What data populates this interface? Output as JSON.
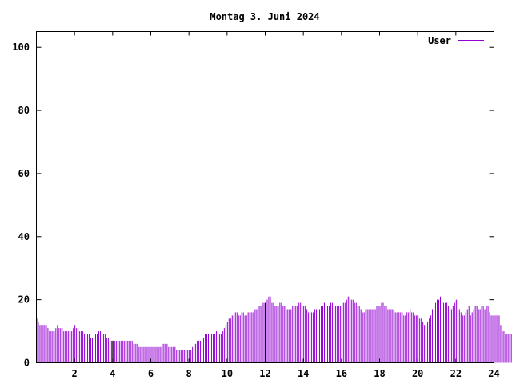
{
  "chart_data": {
    "type": "bar",
    "title": "Montag 3. Juni 2024",
    "xlabel": "",
    "ylabel": "",
    "xlim": [
      0,
      24
    ],
    "ylim": [
      0,
      105
    ],
    "x_ticks": [
      2,
      4,
      6,
      8,
      10,
      12,
      14,
      16,
      18,
      20,
      22,
      24
    ],
    "y_ticks": [
      0,
      20,
      40,
      60,
      80,
      100
    ],
    "grid": false,
    "legend_position": "top-right",
    "color": "#9400d3",
    "series": [
      {
        "name": "User",
        "step_minutes": 5,
        "values": [
          14,
          13,
          12,
          12,
          12,
          12,
          12,
          11,
          10,
          10,
          10,
          10,
          11,
          12,
          11,
          11,
          11,
          10,
          10,
          10,
          10,
          10,
          10,
          11,
          12,
          11,
          11,
          10,
          10,
          10,
          9,
          9,
          9,
          9,
          8,
          8,
          9,
          9,
          9,
          10,
          10,
          10,
          9,
          9,
          8,
          8,
          7,
          7,
          7,
          7,
          7,
          7,
          7,
          7,
          7,
          7,
          7,
          7,
          7,
          7,
          7,
          6,
          6,
          6,
          5,
          5,
          5,
          5,
          5,
          5,
          5,
          5,
          5,
          5,
          5,
          5,
          5,
          5,
          5,
          6,
          6,
          6,
          6,
          5,
          5,
          5,
          5,
          5,
          4,
          4,
          4,
          4,
          4,
          4,
          4,
          4,
          4,
          4,
          5,
          6,
          6,
          7,
          7,
          7,
          8,
          8,
          9,
          9,
          9,
          9,
          9,
          9,
          9,
          10,
          10,
          9,
          9,
          10,
          11,
          12,
          13,
          14,
          14,
          15,
          15,
          16,
          16,
          15,
          15,
          16,
          16,
          15,
          15,
          16,
          16,
          16,
          16,
          17,
          17,
          17,
          18,
          18,
          19,
          19,
          19,
          20,
          21,
          21,
          19,
          19,
          18,
          18,
          18,
          19,
          19,
          18,
          18,
          17,
          17,
          17,
          17,
          18,
          18,
          18,
          18,
          19,
          19,
          18,
          18,
          18,
          17,
          16,
          16,
          16,
          16,
          17,
          17,
          17,
          17,
          18,
          18,
          19,
          19,
          18,
          18,
          19,
          19,
          18,
          18,
          18,
          18,
          18,
          18,
          19,
          19,
          20,
          21,
          21,
          20,
          20,
          19,
          19,
          18,
          18,
          17,
          16,
          16,
          17,
          17,
          17,
          17,
          17,
          17,
          17,
          18,
          18,
          18,
          19,
          19,
          18,
          18,
          17,
          17,
          17,
          17,
          16,
          16,
          16,
          16,
          16,
          16,
          15,
          15,
          16,
          16,
          17,
          16,
          16,
          15,
          15,
          15,
          14,
          14,
          13,
          12,
          12,
          13,
          14,
          15,
          17,
          18,
          19,
          20,
          20,
          21,
          20,
          19,
          19,
          19,
          18,
          17,
          17,
          18,
          19,
          20,
          20,
          17,
          16,
          15,
          15,
          16,
          17,
          18,
          15,
          16,
          17,
          18,
          18,
          17,
          17,
          18,
          18,
          17,
          18,
          18,
          16,
          15,
          15,
          15,
          15,
          15,
          15,
          12,
          10,
          10,
          9,
          9,
          9,
          9,
          9,
          10,
          9
        ]
      }
    ],
    "emphasized_x": [
      4,
      12,
      20
    ]
  }
}
